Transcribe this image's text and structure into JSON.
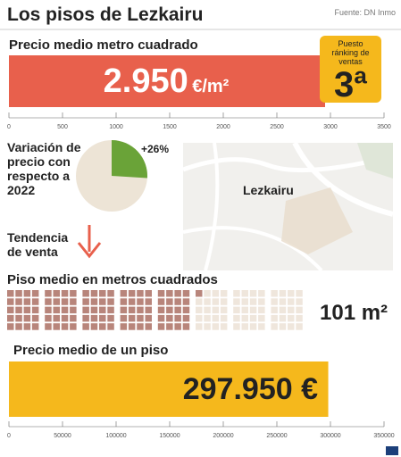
{
  "title": "Los pisos de Lezkairu",
  "source": "Fuente: DN Inmo",
  "price_m2": {
    "type": "bar",
    "label": "Precio medio metro cuadrado",
    "value": 2950,
    "value_label": "2.950",
    "unit": "€/m²",
    "color": "#e8604c",
    "xlim": [
      0,
      3500
    ],
    "xticks": [
      0,
      500,
      1000,
      1500,
      2000,
      2500,
      3000,
      3500
    ]
  },
  "ranking": {
    "label": "Puesto ránking de ventas",
    "value": {
      "value": 3,
      "label": "3ª"
    },
    "color": "#f5b81c"
  },
  "variation": {
    "type": "pie",
    "label": "Variación de precio con respecto a 2022",
    "value": 26,
    "value_label": "+26%",
    "color": "#6aa338",
    "rest_color": "#ede4d6"
  },
  "map": {
    "label": "Lezkairu"
  },
  "trend": {
    "label": "Tendencia de venta"
  },
  "size": {
    "type": "waffle",
    "label": "Piso medio en metros cuadrados",
    "value": 101,
    "value_label": "101 m²",
    "color": "#b8857b",
    "rest_color": "#efe6dc"
  },
  "price_flat": {
    "type": "bar",
    "label": "Precio medio de un piso",
    "value": 297950,
    "value_label": "297.950 €",
    "color": "#f5b81c",
    "xlim": [
      0,
      350000
    ],
    "xticks": [
      0,
      50000,
      100000,
      150000,
      200000,
      250000,
      300000,
      350000
    ]
  }
}
